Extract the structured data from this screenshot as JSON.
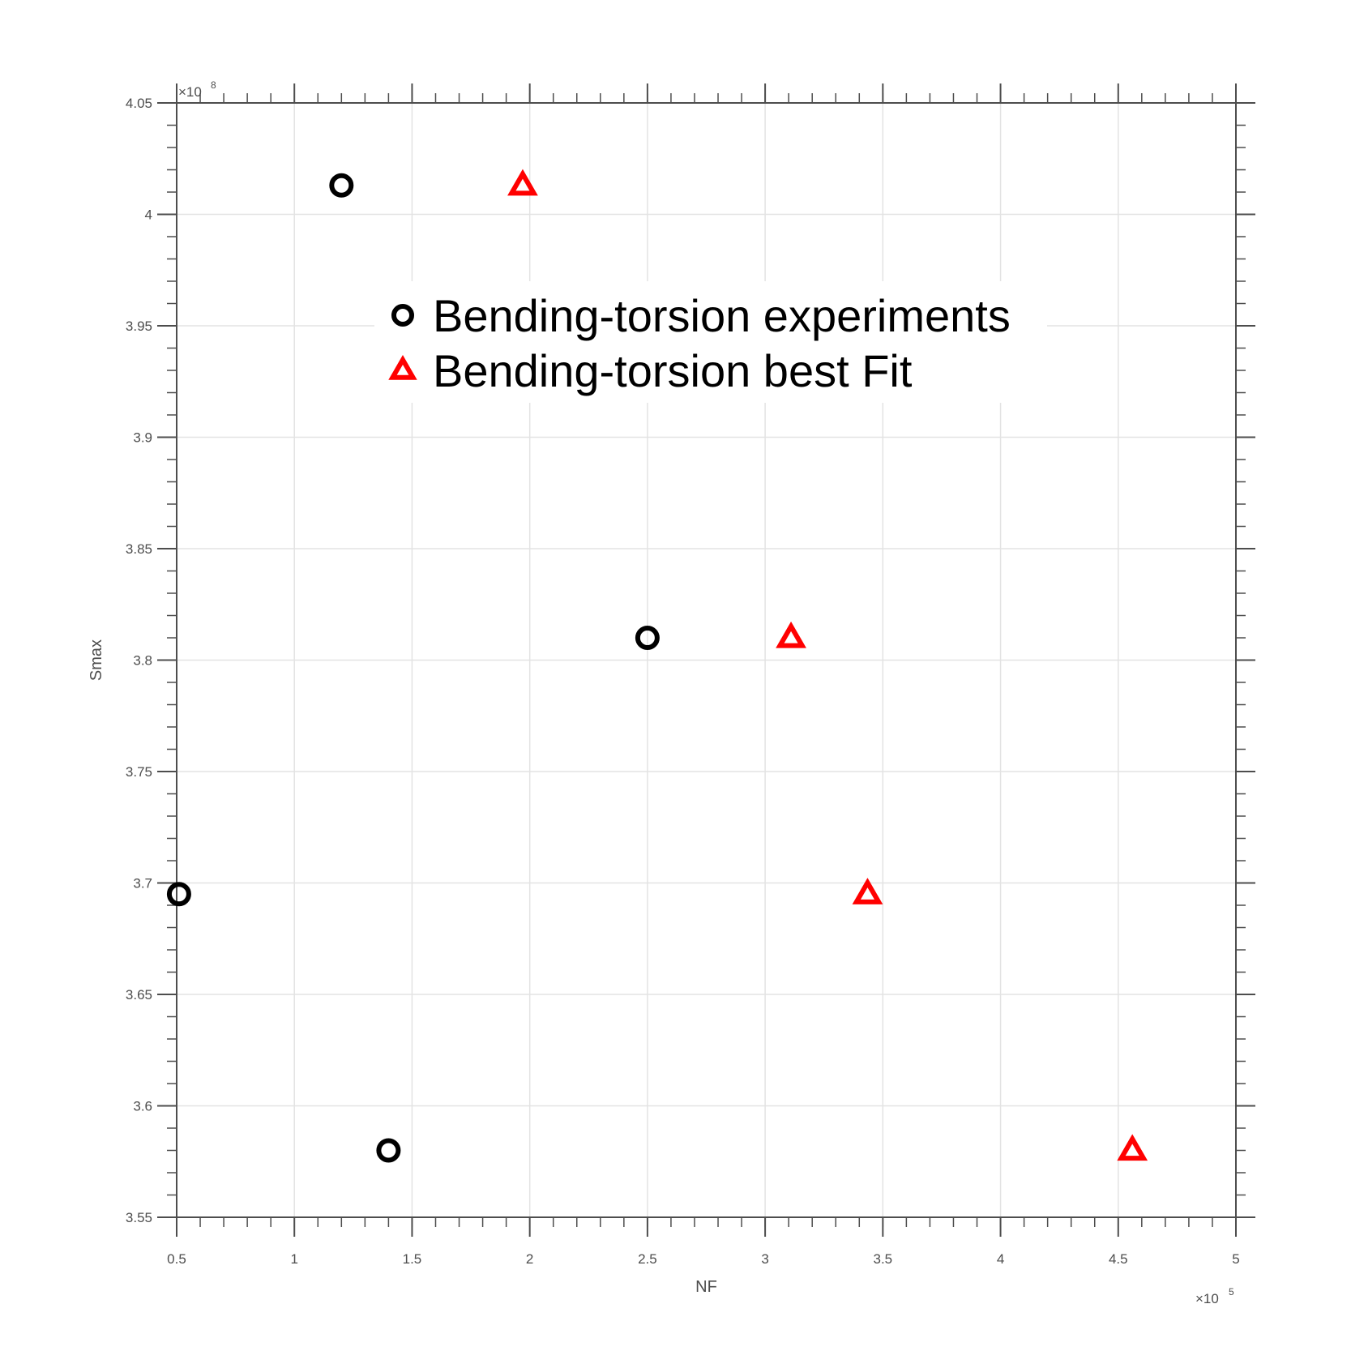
{
  "chart_data": {
    "type": "scatter",
    "xlabel": "NF",
    "ylabel": "Smax",
    "xlim": [
      50000,
      500000
    ],
    "ylim": [
      355000000,
      405000000
    ],
    "x_exponent": {
      "base": "×10",
      "power": "5"
    },
    "y_exponent": {
      "base": "×10",
      "power": "8"
    },
    "x_ticks": [
      {
        "value": 50000,
        "label": "0.5"
      },
      {
        "value": 100000,
        "label": "1"
      },
      {
        "value": 150000,
        "label": "1.5"
      },
      {
        "value": 200000,
        "label": "2"
      },
      {
        "value": 250000,
        "label": "2.5"
      },
      {
        "value": 300000,
        "label": "3"
      },
      {
        "value": 350000,
        "label": "3.5"
      },
      {
        "value": 400000,
        "label": "4"
      },
      {
        "value": 450000,
        "label": "4.5"
      },
      {
        "value": 500000,
        "label": "5"
      }
    ],
    "y_ticks": [
      {
        "value": 355000000,
        "label": "3.55"
      },
      {
        "value": 360000000,
        "label": "3.6"
      },
      {
        "value": 365000000,
        "label": "3.65"
      },
      {
        "value": 370000000,
        "label": "3.7"
      },
      {
        "value": 375000000,
        "label": "3.75"
      },
      {
        "value": 380000000,
        "label": "3.8"
      },
      {
        "value": 385000000,
        "label": "3.85"
      },
      {
        "value": 390000000,
        "label": "3.9"
      },
      {
        "value": 395000000,
        "label": "3.95"
      },
      {
        "value": 400000000,
        "label": "4"
      },
      {
        "value": 405000000,
        "label": "4.05"
      }
    ],
    "grid": true,
    "legend_position": "upper-center",
    "series": [
      {
        "name": "Bending-torsion experiments",
        "marker": "circle",
        "color": "#000000",
        "points": [
          {
            "x": 51000,
            "y": 369500000
          },
          {
            "x": 120000,
            "y": 401300000
          },
          {
            "x": 140000,
            "y": 358000000
          },
          {
            "x": 250000,
            "y": 381000000
          }
        ]
      },
      {
        "name": "Bending-torsion best Fit",
        "marker": "triangle",
        "color": "#ff0000",
        "points": [
          {
            "x": 197000,
            "y": 401300000
          },
          {
            "x": 311000,
            "y": 381000000
          },
          {
            "x": 343500,
            "y": 369500000
          },
          {
            "x": 456000,
            "y": 358000000
          }
        ]
      }
    ]
  }
}
